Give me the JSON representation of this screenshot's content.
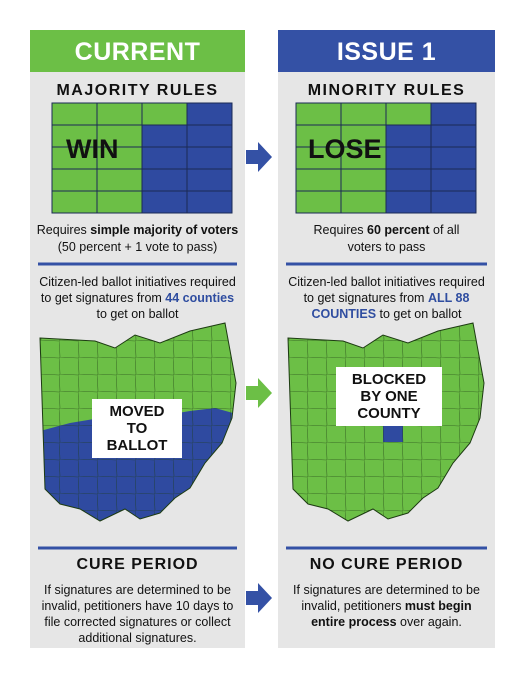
{
  "columns": [
    {
      "header": "CURRENT",
      "rule_title": "MAJORITY RULES",
      "grid_label": "WIN",
      "requirement": [
        "Requires ",
        "simple majority of voters",
        "(50 percent + 1 vote to pass)"
      ],
      "signatures": [
        "Citizen-led ballot initiatives required to get signatures from ",
        "44 counties",
        " to get on ballot"
      ],
      "map_label": "MOVED TO BALLOT",
      "cure_title": "CURE PERIOD",
      "cure_text": [
        "If signatures are determined to be invalid, petitioners have 10 days to file corrected signatures or collect additional signatures."
      ]
    },
    {
      "header": "ISSUE 1",
      "rule_title": "MINORITY RULES",
      "grid_label": "LOSE",
      "requirement": [
        "Requires ",
        "60 percent",
        " of all voters to pass"
      ],
      "signatures": [
        "Citizen-led ballot initiatives required to get signatures from ",
        "ALL 88 COUNTIES",
        " to get on ballot"
      ],
      "map_label": "BLOCKED BY ONE COUNTY",
      "cure_title": "NO CURE PERIOD",
      "cure_text": [
        "If signatures are determined to be invalid, petitioners ",
        "must begin entire process",
        " over again."
      ]
    }
  ]
}
